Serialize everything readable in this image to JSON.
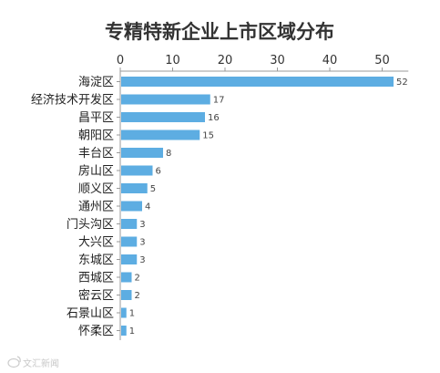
{
  "watermark": "文汇新闻",
  "chart_data": {
    "type": "bar",
    "orientation": "horizontal",
    "title": "专精特新企业上市区域分布",
    "xlabel": "",
    "ylabel": "",
    "xlim": [
      0,
      55
    ],
    "x_ticks": [
      0,
      10,
      20,
      30,
      40,
      50
    ],
    "grid": false,
    "bar_color": "#5dade2",
    "categories": [
      "海淀区",
      "经济技术开发区",
      "昌平区",
      "朝阳区",
      "丰台区",
      "房山区",
      "顺义区",
      "通州区",
      "门头沟区",
      "大兴区",
      "东城区",
      "西城区",
      "密云区",
      "石景山区",
      "怀柔区"
    ],
    "values": [
      52,
      17,
      16,
      15,
      8,
      6,
      5,
      4,
      3,
      3,
      3,
      2,
      2,
      1,
      1
    ]
  }
}
